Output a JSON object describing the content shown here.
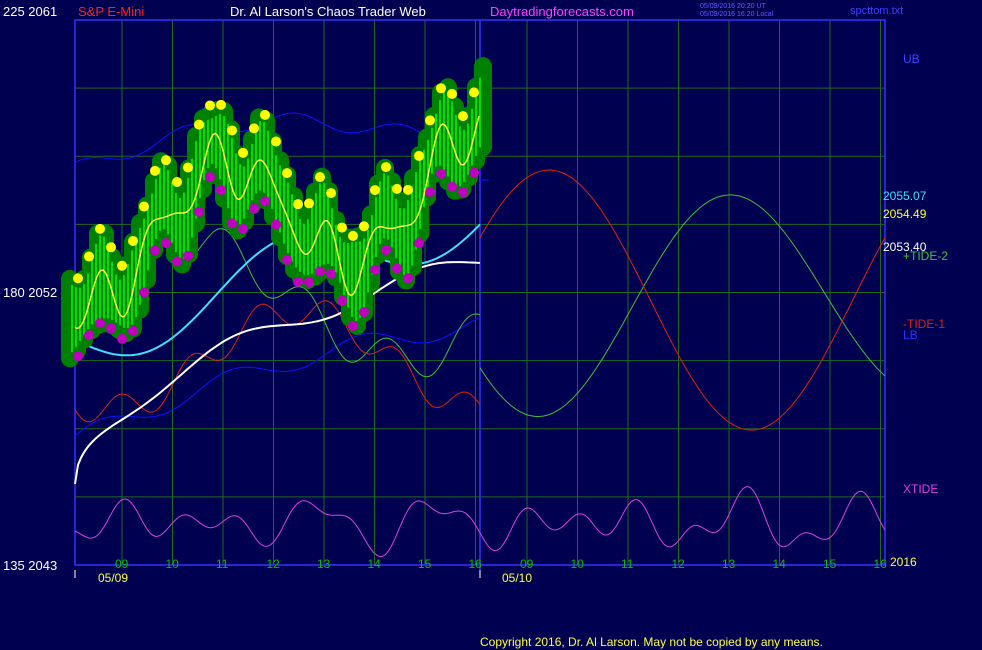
{
  "header": {
    "left_scale": "225  2061",
    "instrument": "S&P E-Mini",
    "title": "Dr. Al Larson's Chaos Trader Web",
    "site": "Daytradingforecasts.com",
    "timestamp_line1": "05/09/2016 20:20 UT",
    "timestamp_line2": "05/09/2016 16:20 Local",
    "file": "spcttom.txt"
  },
  "scale_labels": {
    "mid": "180  2052",
    "bottom": "135  2043"
  },
  "right_labels": {
    "ub": "UB",
    "price_1": "2055.07",
    "price_2": "2054.49",
    "price_3": "2053.40",
    "tide_plus": "+TIDE-2",
    "tide_minus": "-TIDE-1",
    "lb": "LB",
    "xtide": "XTIDE",
    "year": "2016"
  },
  "footer": {
    "copyright": "Copyright 2016, Dr. Al Larson. May not be copied by any means."
  },
  "colors": {
    "background": "#000050",
    "frame": "#3333ff",
    "grid": "#1f6a1f",
    "price_bars": "#00ff00",
    "price_halo": "#008000",
    "high_markers": "#ffff00",
    "low_markers": "#c000c0",
    "fast_ma": "#ffff40",
    "cyan_ma": "#40e0ff",
    "white_ma": "#ffffff",
    "bands": "#1010ff",
    "plus_tide": "#40c040",
    "minus_tide": "#e02010",
    "xtide": "#e040e0"
  },
  "chart_data": {
    "type": "line",
    "title": "S&P E-Mini",
    "y_axis_left_labels": [
      "225  2061",
      "180  2052",
      "135  2043"
    ],
    "price_range": [
      2043,
      2061
    ],
    "date_labels": [
      "05/09",
      "05/10"
    ],
    "hour_ticks_day1": [
      "09",
      "10",
      "11",
      "12",
      "13",
      "14",
      "15",
      "16"
    ],
    "hour_ticks_day2": [
      "09",
      "10",
      "11",
      "12",
      "13",
      "14",
      "15",
      "16"
    ],
    "last_prices": [
      2055.07,
      2054.49,
      2053.4
    ],
    "series": [
      {
        "name": "UB"
      },
      {
        "name": "LB"
      },
      {
        "name": "+TIDE-2"
      },
      {
        "name": "-TIDE-1"
      },
      {
        "name": "XTIDE"
      }
    ]
  }
}
